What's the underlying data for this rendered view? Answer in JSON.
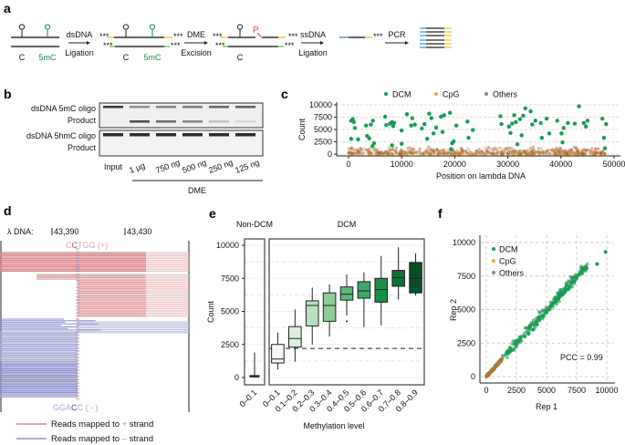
{
  "panel_labels": {
    "a": "a",
    "b": "b",
    "c": "c",
    "d": "d",
    "e": "e",
    "f": "f"
  },
  "panel_a": {
    "c": "C",
    "mc": "5mC",
    "step1_top": "dsDNA",
    "step1_bottom": "Ligation",
    "step2_top": "DME",
    "step2_bottom": "Excision",
    "step3_top": "ssDNA",
    "step3_bottom": "Ligation",
    "step4_top": "PCR",
    "adapter": "***",
    "phosphate": "P",
    "colors": {
      "mc": "#1a8a4a",
      "p": "#e8473c",
      "adapter_top": "#f2d022",
      "adapter_bottom": "#7cc47f",
      "ss_adapter": "#4a9ad4"
    }
  },
  "panel_b": {
    "row_labels": [
      "dsDNA 5mC oligo",
      "Product",
      "dsDNA 5hmC oligo",
      "Product"
    ],
    "lanes": [
      "Input",
      "1 µg",
      "750 ng",
      "500 ng",
      "250 ng",
      "125 ng"
    ],
    "group_label": "DME",
    "band_5mC_oligo": [
      0.9,
      0.45,
      0.5,
      0.55,
      0.65,
      0.7
    ],
    "band_5mC_product": [
      0,
      0.8,
      0.65,
      0.5,
      0.2,
      0.1
    ],
    "band_5hmC_oligo": [
      0.95,
      0.95,
      0.95,
      0.95,
      0.95,
      0.95
    ]
  },
  "panel_d": {
    "prefix": "λ DNA:",
    "pos1": "43,390",
    "pos2": "43,430",
    "plus_motif_a": "C",
    "plus_motif_b": "C",
    "plus_motif_c": "TGG (+)",
    "minus_motif_a": "GGA",
    "minus_motif_b": "C",
    "minus_motif_c": "C ( - )",
    "legend": [
      {
        "pre": "Reads mapped to ",
        "sign": "+",
        "post": " strand",
        "color": "#d98a8e"
      },
      {
        "pre": "Reads mapped to ",
        "sign": "–",
        "post": " strand",
        "color": "#8f93c8"
      }
    ]
  },
  "chart_data": [
    {
      "id": "c",
      "type": "scatter",
      "xlabel": "Position on lambda DNA",
      "ylabel": "Count",
      "xlim": [
        0,
        50000
      ],
      "ylim": [
        0,
        10000
      ],
      "xticks": [
        "0",
        "10000",
        "20000",
        "30000",
        "40000",
        "50000"
      ],
      "yticks": [
        "0",
        "2500",
        "5000",
        "7500",
        "10000"
      ],
      "legend": [
        {
          "name": "DCM",
          "color": "#1a9a55"
        },
        {
          "name": "CpG",
          "color": "#f0a040"
        },
        {
          "name": "Others",
          "color": "#8a8a8a"
        }
      ],
      "legend_position": "top",
      "dcm_points": [
        [
          500,
          6800
        ],
        [
          800,
          7100
        ],
        [
          1000,
          6500
        ],
        [
          1200,
          5300
        ],
        [
          500,
          3100
        ],
        [
          1800,
          3000
        ],
        [
          3300,
          5800
        ],
        [
          3500,
          3700
        ],
        [
          3900,
          3200
        ],
        [
          4200,
          6000
        ],
        [
          4500,
          1600
        ],
        [
          4600,
          6800
        ],
        [
          4800,
          2200
        ],
        [
          6900,
          7600
        ],
        [
          7100,
          5900
        ],
        [
          7800,
          6200
        ],
        [
          8200,
          6500
        ],
        [
          8400,
          5700
        ],
        [
          8600,
          6300
        ],
        [
          8200,
          1800
        ],
        [
          10000,
          4800
        ],
        [
          10000,
          2100
        ],
        [
          11000,
          8100
        ],
        [
          12000,
          7300
        ],
        [
          12500,
          6000
        ],
        [
          11800,
          5800
        ],
        [
          13800,
          5200
        ],
        [
          14300,
          6100
        ],
        [
          14800,
          3100
        ],
        [
          15200,
          8200
        ],
        [
          15600,
          7300
        ],
        [
          16000,
          4200
        ],
        [
          16500,
          5400
        ],
        [
          17400,
          7600
        ],
        [
          17700,
          4500
        ],
        [
          18000,
          7900
        ],
        [
          19100,
          8400
        ],
        [
          19300,
          1000
        ],
        [
          19500,
          2200
        ],
        [
          19800,
          2600
        ],
        [
          20300,
          5800
        ],
        [
          22400,
          6600
        ],
        [
          22600,
          3300
        ],
        [
          23400,
          4900
        ],
        [
          28600,
          7700
        ],
        [
          28800,
          6100
        ],
        [
          30200,
          5600
        ],
        [
          30500,
          4300
        ],
        [
          30800,
          6200
        ],
        [
          31200,
          7900
        ],
        [
          31500,
          6500
        ],
        [
          31800,
          2000
        ],
        [
          32300,
          7100
        ],
        [
          32600,
          3800
        ],
        [
          32900,
          7800
        ],
        [
          33300,
          9300
        ],
        [
          34300,
          8700
        ],
        [
          34600,
          6000
        ],
        [
          35200,
          6800
        ],
        [
          36200,
          6300
        ],
        [
          36400,
          3300
        ],
        [
          37300,
          7200
        ],
        [
          37800,
          4200
        ],
        [
          39300,
          6800
        ],
        [
          40100,
          4200
        ],
        [
          40300,
          2400
        ],
        [
          40500,
          5300
        ],
        [
          41300,
          6300
        ],
        [
          42600,
          6200
        ],
        [
          43400,
          9700
        ],
        [
          44300,
          6300
        ],
        [
          44700,
          5600
        ],
        [
          45000,
          6800
        ],
        [
          47800,
          7200
        ],
        [
          48100,
          3300
        ],
        [
          48300,
          1200
        ],
        [
          48500,
          6100
        ]
      ]
    },
    {
      "id": "e",
      "type": "box",
      "ylabel": "Count",
      "xlabel": "Methylation level",
      "ylim": [
        0,
        10500
      ],
      "yticks": [
        "0",
        "2500",
        "5000",
        "7500",
        "10000"
      ],
      "threshold": 2200,
      "facets": [
        {
          "title": "Non-DCM",
          "boxes": [
            {
              "label": "0–0.1",
              "min": 0,
              "q1": 50,
              "median": 100,
              "q3": 150,
              "max": 1900,
              "fill": "#f0f0f0",
              "outliers": []
            }
          ]
        },
        {
          "title": "DCM",
          "boxes": [
            {
              "label": "0–0.1",
              "min": 600,
              "q1": 1100,
              "median": 1400,
              "q3": 2500,
              "max": 3400,
              "fill": "#f3f8f3",
              "outliers": []
            },
            {
              "label": "0.1–0.2",
              "min": 1200,
              "q1": 2300,
              "median": 2950,
              "q3": 3850,
              "max": 5150,
              "fill": "#dcefdc",
              "outliers": []
            },
            {
              "label": "0.2–0.3",
              "min": 2500,
              "q1": 3900,
              "median": 5450,
              "q3": 5800,
              "max": 6800,
              "fill": "#b8e0bc",
              "outliers": []
            },
            {
              "label": "0.3–0.4",
              "min": 3100,
              "q1": 4250,
              "median": 5450,
              "q3": 6400,
              "max": 7050,
              "fill": "#8fcc99",
              "outliers": []
            },
            {
              "label": "0.4–0.5",
              "min": 4700,
              "q1": 5850,
              "median": 6300,
              "q3": 6850,
              "max": 7800,
              "fill": "#5fb77a",
              "outliers": [
                4250
              ]
            },
            {
              "label": "0.5–0.6",
              "min": 3800,
              "q1": 6000,
              "median": 6550,
              "q3": 7250,
              "max": 7950,
              "fill": "#3aa866",
              "outliers": []
            },
            {
              "label": "0.6–0.7",
              "min": 3950,
              "q1": 5700,
              "median": 6650,
              "q3": 7500,
              "max": 9200,
              "fill": "#1d8d4c",
              "outliers": []
            },
            {
              "label": "0.7–0.8",
              "min": 5900,
              "q1": 6900,
              "median": 7550,
              "q3": 8100,
              "max": 9850,
              "fill": "#10703a",
              "outliers": []
            },
            {
              "label": "0.8–0.9",
              "min": 6200,
              "q1": 6400,
              "median": 7500,
              "q3": 8700,
              "max": 9400,
              "fill": "#0b4d26",
              "outliers": []
            }
          ]
        }
      ]
    },
    {
      "id": "f",
      "type": "scatter",
      "xlabel": "Rep 1",
      "ylabel": "Rep 2",
      "xlim": [
        0,
        10000
      ],
      "ylim": [
        0,
        10000
      ],
      "xticks": [
        "0",
        "2500",
        "5000",
        "7500",
        "10000"
      ],
      "yticks": [
        "0",
        "2500",
        "5000",
        "7500",
        "10000"
      ],
      "legend": [
        {
          "name": "DCM",
          "color": "#1a9a55"
        },
        {
          "name": "CpG",
          "color": "#f0a040"
        },
        {
          "name": "Others",
          "color": "#8a8a8a"
        }
      ],
      "legend_position": "top-left",
      "annotation": "PCC = 0.99",
      "dcm_points": [
        [
          1700,
          1800
        ],
        [
          2000,
          2100
        ],
        [
          2500,
          2500
        ],
        [
          2600,
          2700
        ],
        [
          3200,
          3000
        ],
        [
          3500,
          3200
        ],
        [
          3900,
          3500
        ],
        [
          4200,
          3900
        ],
        [
          4400,
          4200
        ],
        [
          4700,
          4500
        ],
        [
          5000,
          4800
        ],
        [
          5200,
          5000
        ],
        [
          5400,
          5300
        ],
        [
          5600,
          5500
        ],
        [
          5800,
          5600
        ],
        [
          6000,
          5800
        ],
        [
          6100,
          6000
        ],
        [
          6300,
          6100
        ],
        [
          6500,
          6300
        ],
        [
          6700,
          6500
        ],
        [
          6900,
          6700
        ],
        [
          7100,
          7000
        ],
        [
          7300,
          7100
        ],
        [
          7500,
          7400
        ],
        [
          7700,
          7600
        ],
        [
          7900,
          7800
        ],
        [
          8100,
          8000
        ],
        [
          8300,
          8100
        ],
        [
          9200,
          8400
        ],
        [
          9900,
          9300
        ]
      ],
      "cpg_range": [
        0,
        1300
      ]
    }
  ]
}
